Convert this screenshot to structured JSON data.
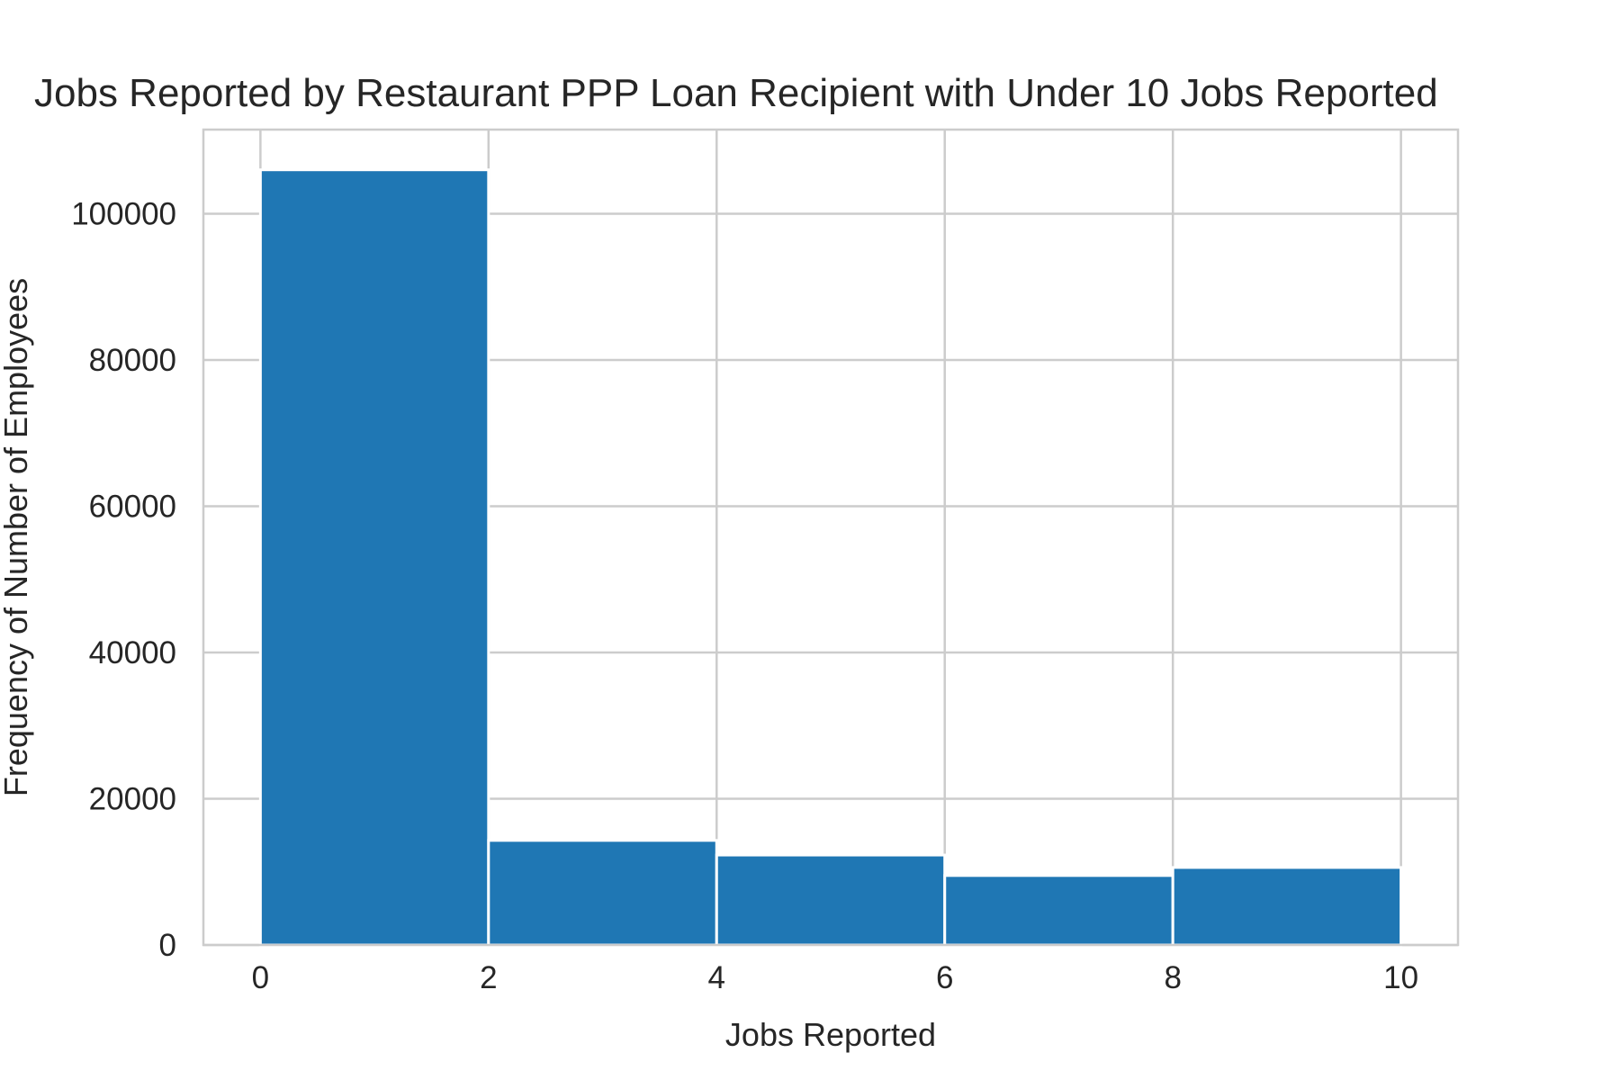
{
  "chart_data": {
    "type": "bar",
    "title": "Jobs Reported by Restaurant PPP Loan Recipient with Under 10 Jobs Reported",
    "xlabel": "Jobs Reported",
    "ylabel": "Frequency of Number of Employees",
    "bins": [
      [
        0,
        2
      ],
      [
        2,
        4
      ],
      [
        4,
        6
      ],
      [
        6,
        8
      ],
      [
        8,
        10
      ]
    ],
    "values": [
      106000,
      14300,
      12300,
      9500,
      10600
    ],
    "xlim": [
      -0.5,
      10.5
    ],
    "ylim": [
      0,
      111500
    ],
    "xticks": [
      0,
      2,
      4,
      6,
      8,
      10
    ],
    "xtick_labels": [
      "0",
      "2",
      "4",
      "6",
      "8",
      "10"
    ],
    "yticks": [
      0,
      20000,
      40000,
      60000,
      80000,
      100000
    ],
    "ytick_labels": [
      "0",
      "20000",
      "40000",
      "60000",
      "80000",
      "100000"
    ],
    "grid": true,
    "colors": {
      "bar": "#1f77b4",
      "grid": "#cccccc",
      "text": "#262626"
    }
  }
}
